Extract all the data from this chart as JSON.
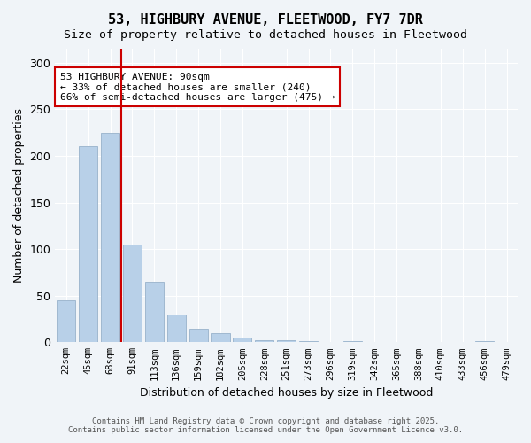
{
  "title": "53, HIGHBURY AVENUE, FLEETWOOD, FY7 7DR",
  "subtitle": "Size of property relative to detached houses in Fleetwood",
  "xlabel": "Distribution of detached houses by size in Fleetwood",
  "ylabel": "Number of detached properties",
  "footer_line1": "Contains HM Land Registry data © Crown copyright and database right 2025.",
  "footer_line2": "Contains public sector information licensed under the Open Government Licence v3.0.",
  "annotation_title": "53 HIGHBURY AVENUE: 90sqm",
  "annotation_line1": "← 33% of detached houses are smaller (240)",
  "annotation_line2": "66% of semi-detached houses are larger (475) →",
  "property_size": 90,
  "vline_bin_index": 3,
  "categories": [
    "22sqm",
    "45sqm",
    "68sqm",
    "91sqm",
    "113sqm",
    "136sqm",
    "159sqm",
    "182sqm",
    "205sqm",
    "228sqm",
    "251sqm",
    "273sqm",
    "296sqm",
    "319sqm",
    "342sqm",
    "365sqm",
    "388sqm",
    "410sqm",
    "433sqm",
    "456sqm",
    "479sqm"
  ],
  "values": [
    45,
    210,
    225,
    105,
    65,
    30,
    15,
    10,
    5,
    2,
    2,
    1,
    0,
    1,
    0,
    0,
    0,
    0,
    0,
    1,
    0
  ],
  "bar_color": "#b8d0e8",
  "bar_edge_color": "#a0b8d0",
  "vline_color": "#cc0000",
  "background_color": "#f0f4f8",
  "ylim": [
    0,
    315
  ],
  "yticks": [
    0,
    50,
    100,
    150,
    200,
    250,
    300
  ]
}
